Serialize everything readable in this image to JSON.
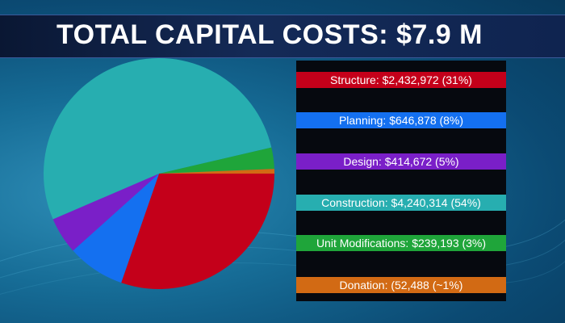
{
  "title": "TOTAL CAPITAL COSTS: $7.9 M",
  "legend": [
    {
      "text": "Structure: $2,432,972 (31%)",
      "color": "#c4001a"
    },
    {
      "text": "Planning: $646,878 (8%)",
      "color": "#1470f0"
    },
    {
      "text": "Design: $414,672 (5%)",
      "color": "#7a1fc8"
    },
    {
      "text": "Construction: $4,240,314 (54%)",
      "color": "#27aeb0"
    },
    {
      "text": "Unit Modifications: $239,193 (3%)",
      "color": "#1fa53a"
    },
    {
      "text": "Donation: (52,488 (~1%)",
      "color": "#d26a14"
    }
  ],
  "chart_data": {
    "type": "pie",
    "title": "TOTAL CAPITAL COSTS: $7.9 M",
    "categories": [
      "Structure",
      "Planning",
      "Design",
      "Construction",
      "Unit Modifications",
      "Donation"
    ],
    "values": [
      2432972,
      646878,
      414672,
      4240314,
      239193,
      52488
    ],
    "colors": [
      "#c4001a",
      "#1470f0",
      "#7a1fc8",
      "#27aeb0",
      "#1fa53a",
      "#d26a14"
    ]
  }
}
